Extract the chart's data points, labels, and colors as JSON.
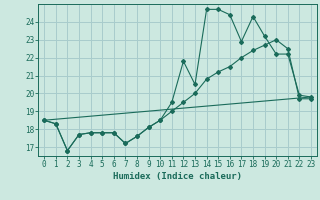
{
  "xlabel": "Humidex (Indice chaleur)",
  "background_color": "#cce8e0",
  "grid_color": "#a8cccc",
  "line_color": "#1a6b5a",
  "xlim": [
    -0.5,
    23.5
  ],
  "ylim": [
    16.5,
    25.0
  ],
  "yticks": [
    17,
    18,
    19,
    20,
    21,
    22,
    23,
    24
  ],
  "xticks": [
    0,
    1,
    2,
    3,
    4,
    5,
    6,
    7,
    8,
    9,
    10,
    11,
    12,
    13,
    14,
    15,
    16,
    17,
    18,
    19,
    20,
    21,
    22,
    23
  ],
  "series1_x": [
    0,
    1,
    2,
    3,
    4,
    5,
    6,
    7,
    8,
    9,
    10,
    11,
    12,
    13,
    14,
    15,
    16,
    17,
    18,
    19,
    20,
    21,
    22,
    23
  ],
  "series1_y": [
    18.5,
    18.3,
    16.8,
    17.7,
    17.8,
    17.8,
    17.8,
    17.2,
    17.6,
    18.1,
    18.5,
    19.5,
    21.8,
    20.5,
    24.7,
    24.7,
    24.4,
    22.9,
    24.3,
    23.2,
    22.2,
    22.2,
    19.9,
    19.8
  ],
  "series2_x": [
    0,
    1,
    2,
    3,
    4,
    5,
    6,
    7,
    8,
    9,
    10,
    11,
    12,
    13,
    14,
    15,
    16,
    17,
    18,
    19,
    20,
    21,
    22,
    23
  ],
  "series2_y": [
    18.5,
    18.3,
    16.8,
    17.7,
    17.8,
    17.8,
    17.8,
    17.2,
    17.6,
    18.1,
    18.5,
    19.0,
    19.5,
    20.0,
    20.8,
    21.2,
    21.5,
    22.0,
    22.4,
    22.7,
    23.0,
    22.5,
    19.7,
    19.7
  ],
  "series3_x": [
    0,
    23
  ],
  "series3_y": [
    18.5,
    19.8
  ]
}
